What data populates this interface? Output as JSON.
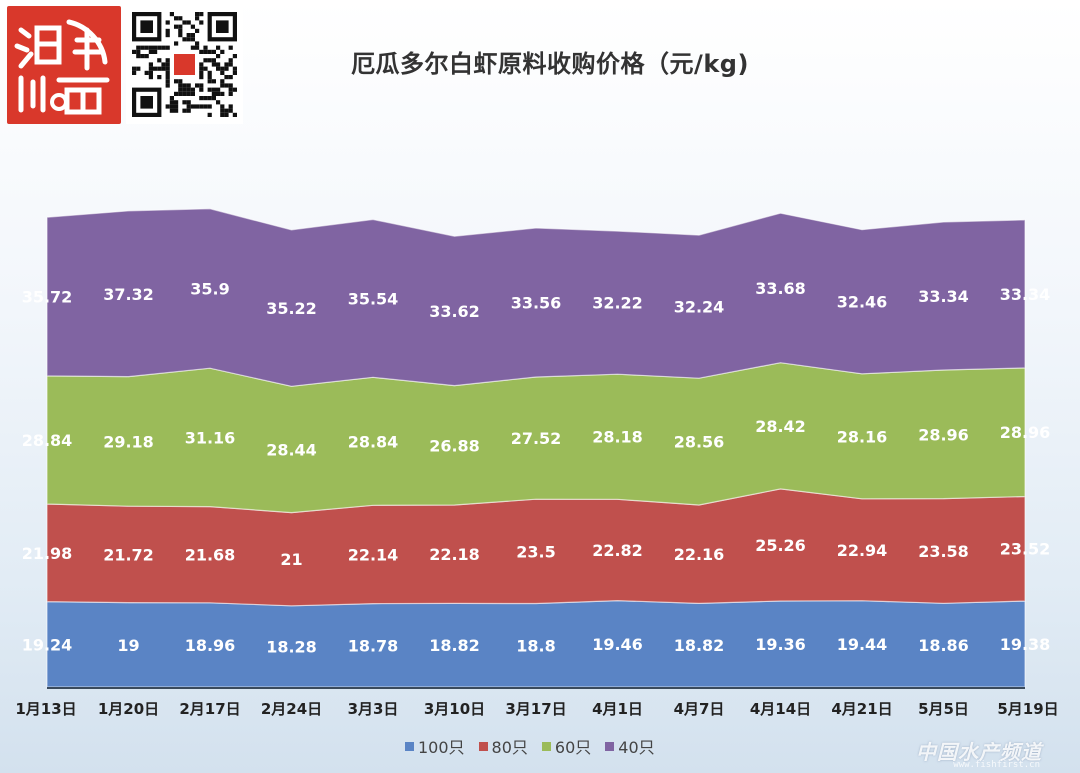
{
  "header": {
    "title": "厄瓜多尔白虾原料收购价格（元/kg)"
  },
  "watermark": {
    "text": "中国水产频道",
    "url": "www.fishfirst.cn"
  },
  "colors": {
    "100只": "#5a84c5",
    "80只": "#c0504d",
    "60只": "#9bbb59",
    "40只": "#8064a2",
    "logo_bg": "#d9382b"
  },
  "chart_data": {
    "type": "area",
    "stacked": true,
    "title": "厄瓜多尔白虾原料收购价格（元/kg)",
    "xlabel": "",
    "ylabel": "",
    "legend_position": "bottom",
    "grid": false,
    "categories": [
      "1月13日",
      "1月20日",
      "2月17日",
      "2月24日",
      "3月3日",
      "3月10日",
      "3月17日",
      "4月1日",
      "4月7日",
      "4月14日",
      "4月21日",
      "5月5日",
      "5月19日"
    ],
    "series": [
      {
        "name": "100只",
        "values": [
          19.24,
          19,
          18.96,
          18.28,
          18.78,
          18.82,
          18.8,
          19.46,
          18.82,
          19.36,
          19.44,
          18.86,
          19.38
        ]
      },
      {
        "name": "80只",
        "values": [
          21.98,
          21.72,
          21.68,
          21,
          22.14,
          22.18,
          23.5,
          22.82,
          22.16,
          25.26,
          22.94,
          23.58,
          23.52
        ]
      },
      {
        "name": "60只",
        "values": [
          28.84,
          29.18,
          31.16,
          28.44,
          28.84,
          26.88,
          27.52,
          28.18,
          28.56,
          28.42,
          28.16,
          28.96,
          28.96
        ]
      },
      {
        "name": "40只",
        "values": [
          35.72,
          37.32,
          35.9,
          35.22,
          35.54,
          33.62,
          33.56,
          32.22,
          32.24,
          33.68,
          32.46,
          33.34,
          33.34
        ]
      }
    ]
  }
}
